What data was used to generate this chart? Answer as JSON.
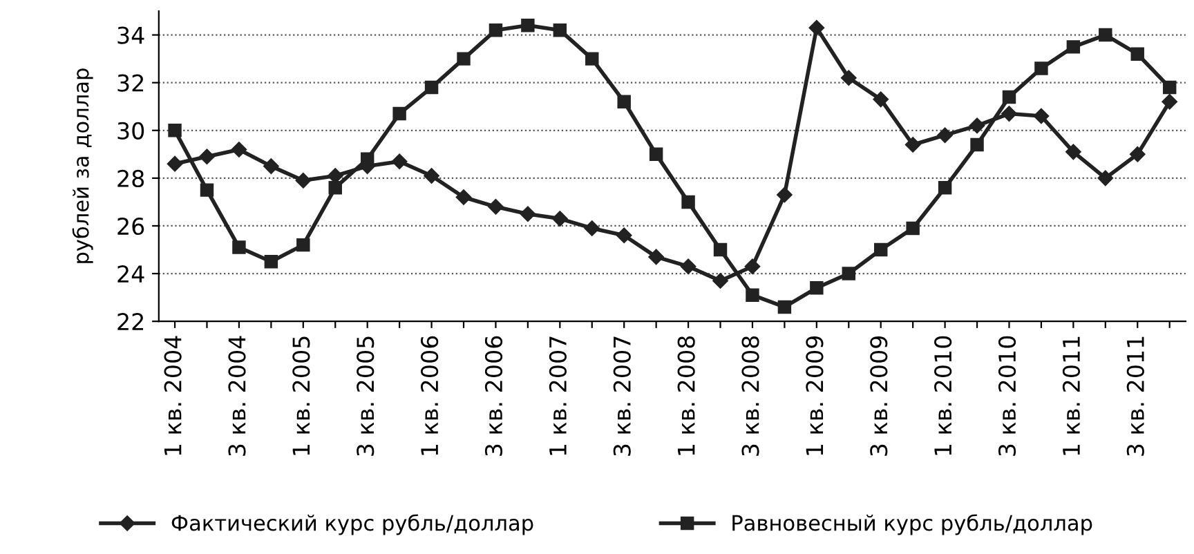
{
  "chart_data": {
    "type": "line",
    "ylabel": "рублей за доллар",
    "categories": [
      "1 кв. 2004",
      null,
      "3 кв. 2004",
      null,
      "1 кв. 2005",
      null,
      "3 кв. 2005",
      null,
      "1 кв. 2006",
      null,
      "3 кв. 2006",
      null,
      "1 кв. 2007",
      null,
      "3 кв. 2007",
      null,
      "1 кв. 2008",
      null,
      "3 кв. 2008",
      null,
      "1 кв. 2009",
      null,
      "3 кв. 2009",
      null,
      "1 кв. 2010",
      null,
      "3 кв. 2010",
      null,
      "1 кв. 2011",
      null,
      "3 кв. 2011",
      null
    ],
    "series": [
      {
        "name": "Фактический курс рубль/доллар",
        "color": "#222222",
        "marker": "diamond",
        "values": [
          28.6,
          28.9,
          29.2,
          28.5,
          27.9,
          28.1,
          28.5,
          28.7,
          28.1,
          27.2,
          26.8,
          26.5,
          26.3,
          25.9,
          25.6,
          24.7,
          24.3,
          23.7,
          24.3,
          27.3,
          34.3,
          32.2,
          31.3,
          29.4,
          29.8,
          30.2,
          30.7,
          30.6,
          29.1,
          28.0,
          29.0,
          31.2
        ]
      },
      {
        "name": "Равновесный курс рубль/доллар",
        "color": "#222222",
        "marker": "square",
        "values": [
          30.0,
          27.5,
          25.1,
          24.5,
          25.2,
          27.6,
          28.8,
          30.7,
          31.8,
          33.0,
          34.2,
          34.4,
          34.2,
          33.0,
          31.2,
          29.0,
          27.0,
          25.0,
          23.1,
          22.6,
          23.4,
          24.0,
          25.0,
          25.9,
          27.6,
          29.4,
          31.4,
          32.6,
          33.5,
          34.0,
          33.2,
          31.8
        ]
      }
    ],
    "ylim": [
      22,
      35
    ],
    "yticks": [
      22,
      24,
      26,
      28,
      30,
      32,
      34
    ],
    "grid": "y",
    "legend": "bottom",
    "line_style": "solid"
  }
}
